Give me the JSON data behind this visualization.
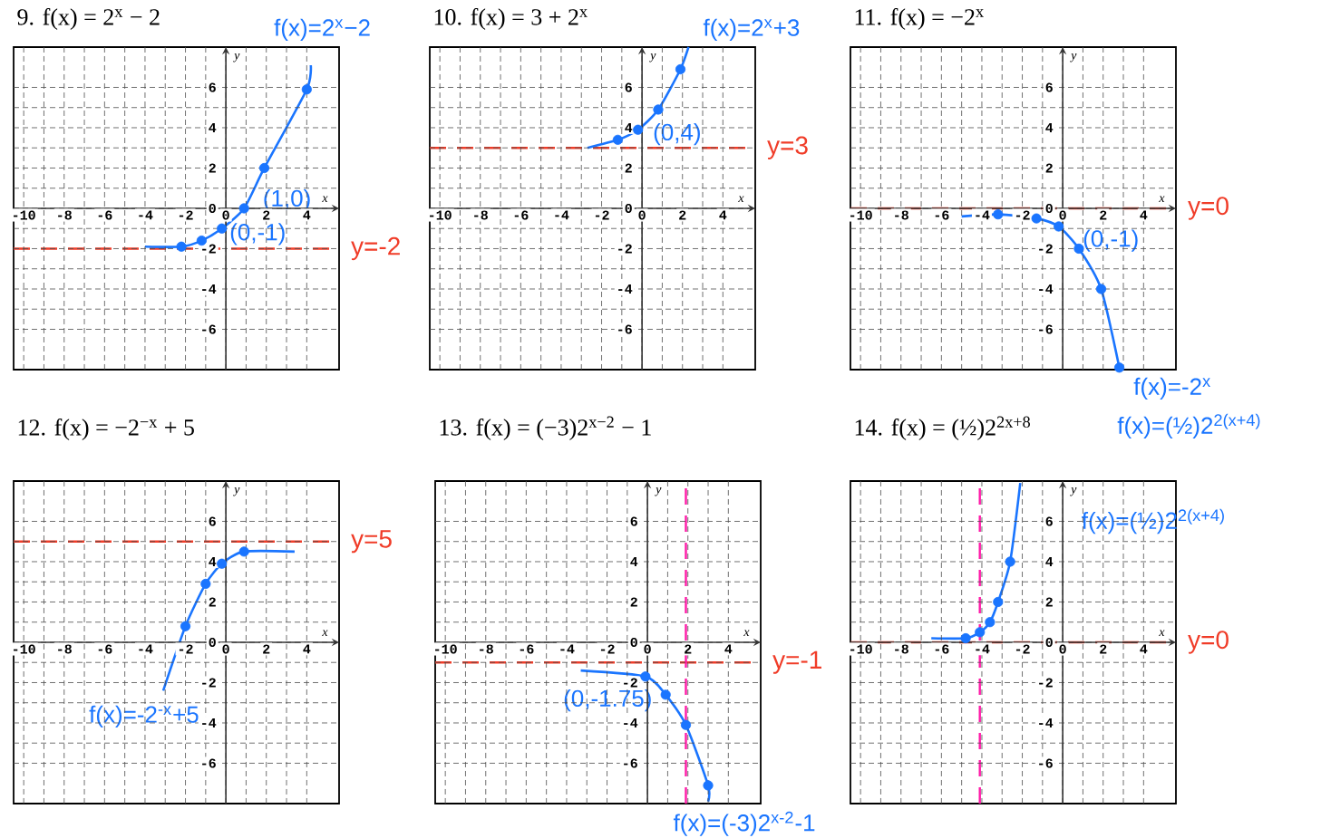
{
  "chart_data": [
    {
      "type": "line",
      "title": "9.  f(x) = 2$^{x}$ − 2",
      "xlabel": "x",
      "ylabel": "y",
      "xlim": [
        -10.5,
        5.6
      ],
      "ylim": [
        -8,
        8
      ],
      "xticks": [
        -10,
        -8,
        -6,
        -4,
        -2,
        0,
        2,
        4
      ],
      "yticks": [
        -6,
        -4,
        -2,
        0,
        2,
        4,
        6
      ],
      "grid": true,
      "series": [
        {
          "color": "#1a75ff",
          "marker": "none",
          "x": [
            -4.0,
            -2.2,
            -1.2,
            -0.2,
            0.9,
            1.9,
            4.0,
            4.2
          ],
          "values": [
            -1.9,
            -1.9,
            -1.6,
            -1.0,
            0.0,
            2.0,
            5.9,
            7.1
          ]
        },
        {
          "type": "scatter",
          "color": "#1a75ff",
          "marker": "circle",
          "x": [
            -2.2,
            -1.2,
            -0.2,
            0.9,
            1.9,
            4.0
          ],
          "values": [
            -1.9,
            -1.6,
            -1.0,
            0.0,
            2.0,
            5.9
          ]
        }
      ],
      "ref_lines": [
        {
          "axis": "y",
          "value": -2,
          "label": "y=-2",
          "color": "#f03c28",
          "line_style": "dashed"
        }
      ],
      "annotations": [
        "f(x)=2$^{x}$−2",
        "(1,0)",
        "(0,-1)"
      ]
    },
    {
      "type": "line",
      "title": "10.  f(x) = 3 + 2$^{x}$",
      "xlabel": "x",
      "ylabel": "y",
      "xlim": [
        -10.5,
        5.6
      ],
      "ylim": [
        -8,
        8
      ],
      "xticks": [
        -10,
        -8,
        -6,
        -4,
        -2,
        0,
        2,
        4
      ],
      "yticks": [
        -6,
        -4,
        -2,
        0,
        2,
        4,
        6
      ],
      "grid": true,
      "series": [
        {
          "color": "#1a75ff",
          "marker": "none",
          "x": [
            -2.7,
            -1.2,
            -0.2,
            0.8,
            1.9,
            2.3
          ],
          "values": [
            3.0,
            3.4,
            3.9,
            4.9,
            6.9,
            8.0
          ]
        },
        {
          "type": "scatter",
          "color": "#1a75ff",
          "marker": "circle",
          "x": [
            -1.2,
            -0.2,
            0.8,
            1.9
          ],
          "values": [
            3.4,
            3.9,
            4.9,
            6.9
          ]
        }
      ],
      "ref_lines": [
        {
          "axis": "y",
          "value": 3,
          "label": "y=3",
          "color": "#f03c28",
          "line_style": "dashed"
        }
      ],
      "annotations": [
        "f(x)=2$^{x}$+3",
        "(0,4)"
      ]
    },
    {
      "type": "line",
      "title": "11.  f(x) = −2$^{x}$",
      "xlabel": "x",
      "ylabel": "y",
      "xlim": [
        -10.5,
        5.6
      ],
      "ylim": [
        -8,
        8
      ],
      "xticks": [
        -10,
        -8,
        -6,
        -4,
        -2,
        0,
        2,
        4
      ],
      "yticks": [
        -6,
        -4,
        -2,
        0,
        2,
        4,
        6
      ],
      "grid": true,
      "series": [
        {
          "color": "#1a75ff",
          "marker": "none",
          "x": [
            -5.0,
            -3.2,
            -1.3,
            -0.2,
            0.8,
            1.9,
            2.8
          ],
          "values": [
            -0.4,
            -0.3,
            -0.5,
            -0.9,
            -2.0,
            -4.0,
            -7.9
          ]
        },
        {
          "type": "scatter",
          "color": "#1a75ff",
          "marker": "circle",
          "x": [
            -3.2,
            -1.3,
            -0.2,
            0.8,
            1.9,
            2.8
          ],
          "values": [
            -0.3,
            -0.5,
            -0.9,
            -2.0,
            -4.0,
            -7.9
          ]
        }
      ],
      "ref_lines": [
        {
          "axis": "y",
          "value": 0,
          "label": "y=0",
          "color": "#f03c28",
          "line_style": "dashed"
        }
      ],
      "annotations": [
        "f(x)=-2$^{x}$",
        "(0,-1)"
      ]
    },
    {
      "type": "line",
      "title": "12.  f(x) = −2$^{−x}$ + 5",
      "xlabel": "x",
      "ylabel": "y",
      "xlim": [
        -10.5,
        5.6
      ],
      "ylim": [
        -8,
        8
      ],
      "xticks": [
        -10,
        -8,
        -6,
        -4,
        -2,
        0,
        2,
        4
      ],
      "yticks": [
        -6,
        -4,
        -2,
        0,
        2,
        4,
        6
      ],
      "grid": true,
      "series": [
        {
          "color": "#1a75ff",
          "marker": "none",
          "x": [
            -3.1,
            -2.0,
            -1.0,
            -0.2,
            0.9,
            3.4
          ],
          "values": [
            -2.4,
            0.8,
            2.9,
            3.9,
            4.5,
            4.5
          ]
        },
        {
          "type": "scatter",
          "color": "#1a75ff",
          "marker": "circle",
          "x": [
            -2.0,
            -1.0,
            -0.2,
            0.9
          ],
          "values": [
            0.8,
            2.9,
            3.9,
            4.5
          ]
        }
      ],
      "ref_lines": [
        {
          "axis": "y",
          "value": 5,
          "label": "y=5",
          "color": "#f03c28",
          "line_style": "dashed"
        }
      ],
      "annotations": [
        "f(x)=-2$^{-x}$+5"
      ]
    },
    {
      "type": "line",
      "title": "13.  f(x) = (−3)2$^{x−2}$ − 1",
      "xlabel": "x",
      "ylabel": "y",
      "xlim": [
        -10.5,
        5.6
      ],
      "ylim": [
        -8,
        8
      ],
      "xticks": [
        -10,
        -8,
        -6,
        -4,
        -2,
        0,
        2,
        4
      ],
      "yticks": [
        -6,
        -4,
        -2,
        0,
        2,
        4,
        6
      ],
      "grid": true,
      "series": [
        {
          "color": "#1a75ff",
          "marker": "none",
          "x": [
            -3.3,
            -0.1,
            0.9,
            1.9,
            3.0,
            3.0
          ],
          "values": [
            -1.4,
            -1.7,
            -2.6,
            -4.1,
            -7.1,
            -7.9
          ]
        },
        {
          "type": "scatter",
          "color": "#1a75ff",
          "marker": "circle",
          "x": [
            -0.1,
            0.9,
            1.9,
            3.0
          ],
          "values": [
            -1.7,
            -2.6,
            -4.1,
            -7.1
          ]
        }
      ],
      "ref_lines": [
        {
          "axis": "y",
          "value": -1,
          "label": "y=-1",
          "color": "#f03c28",
          "line_style": "dashed"
        },
        {
          "axis": "x",
          "value": 1.9,
          "color": "#ff1aa8",
          "line_style": "dashed"
        }
      ],
      "annotations": [
        "f(x)=(-3)2$^{x-2}$-1",
        "(0,-1.75)"
      ]
    },
    {
      "type": "line",
      "title": "14.  f(x) = (½)2$^{2x+8}$",
      "xlabel": "x",
      "ylabel": "y",
      "xlim": [
        -10.5,
        5.6
      ],
      "ylim": [
        -8,
        8
      ],
      "xticks": [
        -10,
        -8,
        -6,
        -4,
        -2,
        0,
        2,
        4
      ],
      "yticks": [
        -6,
        -4,
        -2,
        0,
        2,
        4,
        6
      ],
      "grid": true,
      "series": [
        {
          "color": "#1a75ff",
          "marker": "none",
          "x": [
            -6.5,
            -4.8,
            -4.1,
            -3.6,
            -3.2,
            -2.6,
            -2.1
          ],
          "values": [
            0.2,
            0.2,
            0.5,
            1.0,
            2.0,
            4.0,
            7.9
          ]
        },
        {
          "type": "scatter",
          "color": "#1a75ff",
          "marker": "circle",
          "x": [
            -4.8,
            -4.1,
            -3.6,
            -3.2,
            -2.6
          ],
          "values": [
            0.2,
            0.5,
            1.0,
            2.0,
            4.0
          ]
        }
      ],
      "ref_lines": [
        {
          "axis": "y",
          "value": 0,
          "label": "y=0",
          "color": "#f03c28",
          "line_style": "dashed"
        },
        {
          "axis": "x",
          "value": -4.1,
          "color": "#ff1aa8",
          "line_style": "dashed"
        }
      ],
      "annotations": [
        "f(x)=(½)2$^{2(x+4)}$",
        "f(x)=(½)2$^{2(x+4)}$"
      ]
    }
  ]
}
